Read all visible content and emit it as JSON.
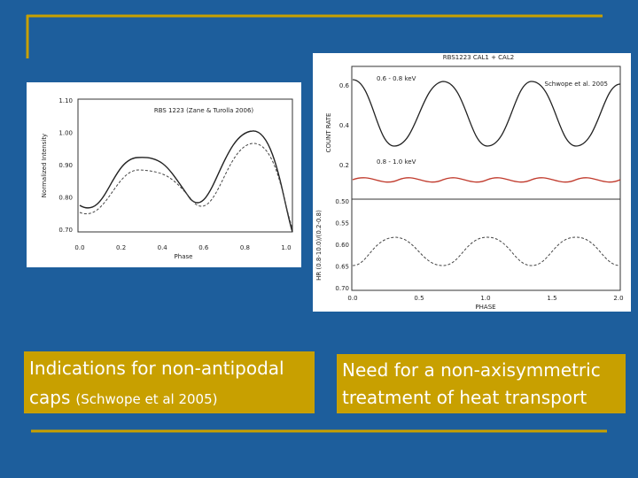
{
  "slide": {
    "figures": [
      {
        "label": "RBS 1223 (Zane & Turolla 2006)",
        "y_axis": "Normalized Intensity",
        "x_axis": "Phase",
        "yticks": [
          "1.10",
          "1.00",
          "0.90",
          "0.80",
          "0.70"
        ],
        "xticks": [
          "0.0",
          "0.2",
          "0.4",
          "0.6",
          "0.8",
          "1.0"
        ]
      },
      {
        "title": "RBS1223 CAL1 + CAL2",
        "label": "Schwope et al. 2005",
        "band_high": "0.6 - 0.8 keV",
        "band_low": "0.8 - 1.0 keV",
        "top_y_axis": "COUNT RATE",
        "bottom_y_axis": "HR (0.8-10.0)/(0.2-0.8)",
        "x_axis": "PHASE",
        "top_yticks": [
          "0.6",
          "0.4",
          "0.2"
        ],
        "bottom_yticks": [
          "0.50",
          "0.55",
          "0.60",
          "0.65",
          "0.70"
        ],
        "xticks": [
          "0.0",
          "0.5",
          "1.0",
          "1.5",
          "2.0"
        ]
      }
    ],
    "captions": [
      {
        "main": "Indications for non-antipodal",
        "main2": "caps",
        "note": "(Schwope et al 2005)"
      },
      {
        "main": "Need for a non-axisymmetric",
        "main2": "treatment of heat transport"
      }
    ]
  }
}
